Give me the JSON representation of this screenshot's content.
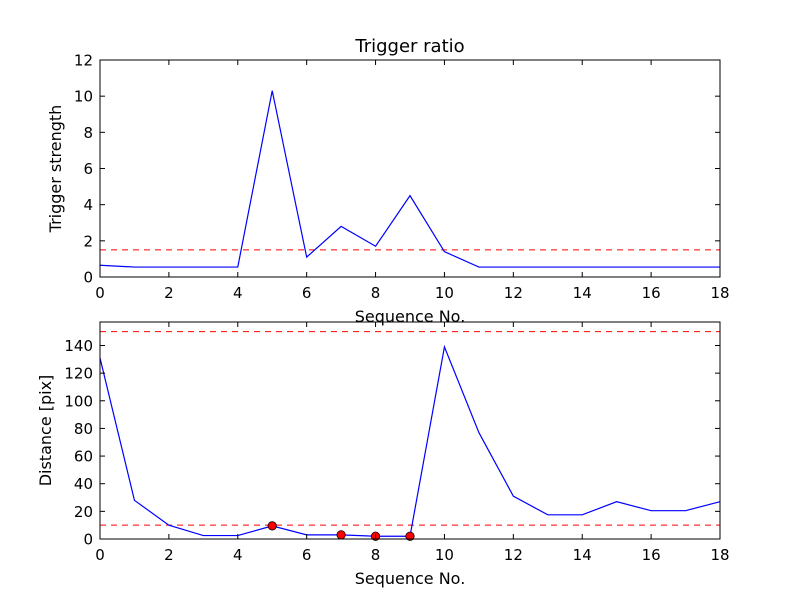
{
  "colors": {
    "series": "#0000ff",
    "threshold": "#ff0000",
    "marker": "#ff0000",
    "axes": "#000000"
  },
  "chart_data": [
    {
      "type": "line",
      "title": "Trigger ratio",
      "xlabel": "Sequence No.",
      "ylabel": "Trigger strength",
      "xlim": [
        0,
        18
      ],
      "ylim": [
        0,
        12
      ],
      "xticks": [
        0,
        2,
        4,
        6,
        8,
        10,
        12,
        14,
        16,
        18
      ],
      "yticks": [
        0,
        2,
        4,
        6,
        8,
        10,
        12
      ],
      "grid": false,
      "series": [
        {
          "x": [
            0,
            1,
            2,
            3,
            4,
            5,
            6,
            7,
            8,
            9,
            10,
            11,
            12,
            13,
            14,
            15,
            16,
            17,
            18
          ],
          "y": [
            0.65,
            0.55,
            0.55,
            0.55,
            0.55,
            10.3,
            1.1,
            2.8,
            1.7,
            4.5,
            1.4,
            0.55,
            0.55,
            0.55,
            0.55,
            0.55,
            0.55,
            0.55,
            0.55
          ]
        }
      ],
      "thresholds": [
        1.5
      ]
    },
    {
      "type": "line",
      "title": "",
      "xlabel": "Sequence No.",
      "ylabel": "Distance [pix]",
      "xlim": [
        0,
        18
      ],
      "ylim": [
        0,
        157
      ],
      "xticks": [
        0,
        2,
        4,
        6,
        8,
        10,
        12,
        14,
        16,
        18
      ],
      "yticks": [
        0,
        20,
        40,
        60,
        80,
        100,
        120,
        140
      ],
      "grid": false,
      "series": [
        {
          "x": [
            0,
            1,
            2,
            3,
            4,
            5,
            6,
            7,
            8,
            9,
            10,
            11,
            12,
            13,
            14,
            15,
            16,
            17,
            18
          ],
          "y": [
            131,
            28,
            10,
            2.5,
            2.5,
            9.5,
            3,
            3,
            2,
            2,
            139,
            77,
            31,
            17.5,
            17.5,
            27,
            20.5,
            20.5,
            27
          ]
        }
      ],
      "thresholds": [
        10,
        150
      ],
      "markers": {
        "x": [
          5,
          7,
          8,
          9
        ],
        "y": [
          9.5,
          3,
          2,
          2
        ]
      }
    }
  ]
}
